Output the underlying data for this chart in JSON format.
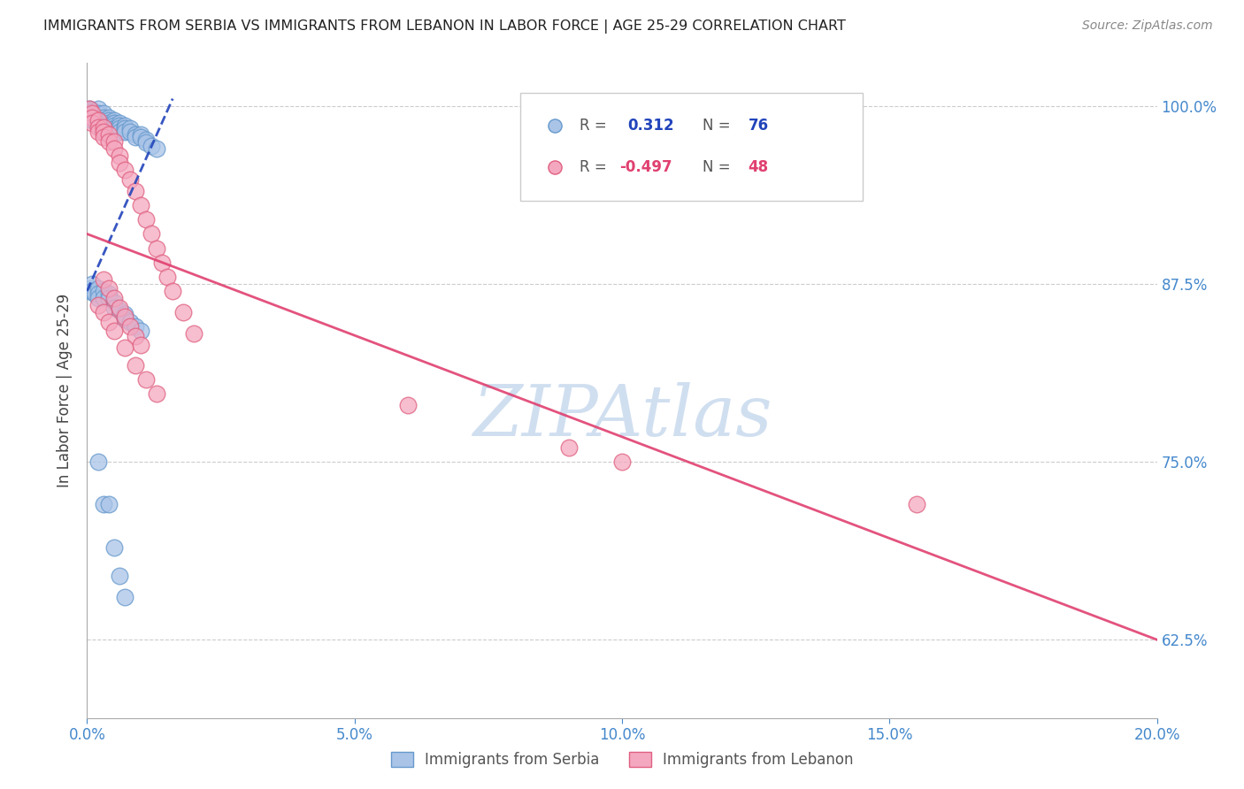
{
  "title": "IMMIGRANTS FROM SERBIA VS IMMIGRANTS FROM LEBANON IN LABOR FORCE | AGE 25-29 CORRELATION CHART",
  "source": "Source: ZipAtlas.com",
  "ylabel": "In Labor Force | Age 25-29",
  "xlim": [
    0.0,
    0.2
  ],
  "ylim": [
    0.57,
    1.03
  ],
  "yticks": [
    0.625,
    0.75,
    0.875,
    1.0
  ],
  "ytick_labels": [
    "62.5%",
    "75.0%",
    "87.5%",
    "100.0%"
  ],
  "xticks": [
    0.0,
    0.05,
    0.1,
    0.15,
    0.2
  ],
  "xtick_labels": [
    "0.0%",
    "5.0%",
    "10.0%",
    "15.0%",
    "20.0%"
  ],
  "serbia_color": "#aac4e8",
  "lebanon_color": "#f4a8c0",
  "serbia_edge": "#6699cc",
  "lebanon_edge": "#e06080",
  "serbia_line_color": "#2244bb",
  "lebanon_line_color": "#e04070",
  "background_color": "#ffffff",
  "grid_color": "#cccccc",
  "axis_color": "#aaaaaa",
  "title_color": "#222222",
  "label_color": "#4488cc",
  "watermark_color": "#d0dff0",
  "serbia_R": 0.312,
  "serbia_N": 76,
  "lebanon_R": -0.497,
  "lebanon_N": 48,
  "serbia_x": [
    0.0005,
    0.0008,
    0.001,
    0.001,
    0.001,
    0.001,
    0.001,
    0.0012,
    0.0015,
    0.002,
    0.002,
    0.002,
    0.002,
    0.002,
    0.002,
    0.0025,
    0.003,
    0.003,
    0.003,
    0.003,
    0.003,
    0.003,
    0.003,
    0.0035,
    0.004,
    0.004,
    0.004,
    0.004,
    0.004,
    0.005,
    0.005,
    0.005,
    0.005,
    0.006,
    0.006,
    0.006,
    0.006,
    0.007,
    0.007,
    0.007,
    0.008,
    0.008,
    0.009,
    0.009,
    0.01,
    0.01,
    0.011,
    0.011,
    0.012,
    0.013,
    0.0005,
    0.0008,
    0.001,
    0.001,
    0.0015,
    0.002,
    0.002,
    0.002,
    0.003,
    0.003,
    0.004,
    0.004,
    0.005,
    0.005,
    0.006,
    0.007,
    0.007,
    0.008,
    0.009,
    0.01,
    0.002,
    0.003,
    0.004,
    0.005,
    0.006,
    0.007
  ],
  "serbia_y": [
    0.998,
    0.997,
    0.996,
    0.994,
    0.993,
    0.991,
    0.99,
    0.995,
    0.992,
    0.998,
    0.995,
    0.992,
    0.99,
    0.988,
    0.986,
    0.99,
    0.995,
    0.992,
    0.99,
    0.988,
    0.986,
    0.984,
    0.982,
    0.988,
    0.992,
    0.99,
    0.988,
    0.986,
    0.984,
    0.99,
    0.988,
    0.986,
    0.984,
    0.988,
    0.986,
    0.984,
    0.982,
    0.986,
    0.984,
    0.982,
    0.984,
    0.982,
    0.98,
    0.978,
    0.98,
    0.978,
    0.976,
    0.974,
    0.972,
    0.97,
    0.87,
    0.872,
    0.875,
    0.87,
    0.868,
    0.872,
    0.868,
    0.865,
    0.87,
    0.865,
    0.868,
    0.865,
    0.862,
    0.858,
    0.856,
    0.854,
    0.85,
    0.848,
    0.845,
    0.842,
    0.75,
    0.72,
    0.72,
    0.69,
    0.67,
    0.655
  ],
  "lebanon_x": [
    0.0005,
    0.001,
    0.001,
    0.001,
    0.002,
    0.002,
    0.002,
    0.003,
    0.003,
    0.003,
    0.004,
    0.004,
    0.005,
    0.005,
    0.006,
    0.006,
    0.007,
    0.008,
    0.009,
    0.01,
    0.011,
    0.012,
    0.013,
    0.014,
    0.015,
    0.016,
    0.018,
    0.02,
    0.003,
    0.004,
    0.005,
    0.006,
    0.007,
    0.008,
    0.009,
    0.01,
    0.002,
    0.003,
    0.004,
    0.005,
    0.007,
    0.009,
    0.011,
    0.013,
    0.06,
    0.09,
    0.1,
    0.155
  ],
  "lebanon_y": [
    0.998,
    0.995,
    0.992,
    0.988,
    0.99,
    0.985,
    0.982,
    0.985,
    0.982,
    0.978,
    0.98,
    0.975,
    0.975,
    0.97,
    0.965,
    0.96,
    0.955,
    0.948,
    0.94,
    0.93,
    0.92,
    0.91,
    0.9,
    0.89,
    0.88,
    0.87,
    0.855,
    0.84,
    0.878,
    0.872,
    0.865,
    0.858,
    0.852,
    0.845,
    0.838,
    0.832,
    0.86,
    0.855,
    0.848,
    0.842,
    0.83,
    0.818,
    0.808,
    0.798,
    0.79,
    0.76,
    0.75,
    0.72
  ],
  "serbia_line_x": [
    0.0,
    0.016
  ],
  "serbia_line_y": [
    0.87,
    1.005
  ],
  "lebanon_line_x": [
    0.0,
    0.2
  ],
  "lebanon_line_y": [
    0.91,
    0.625
  ]
}
